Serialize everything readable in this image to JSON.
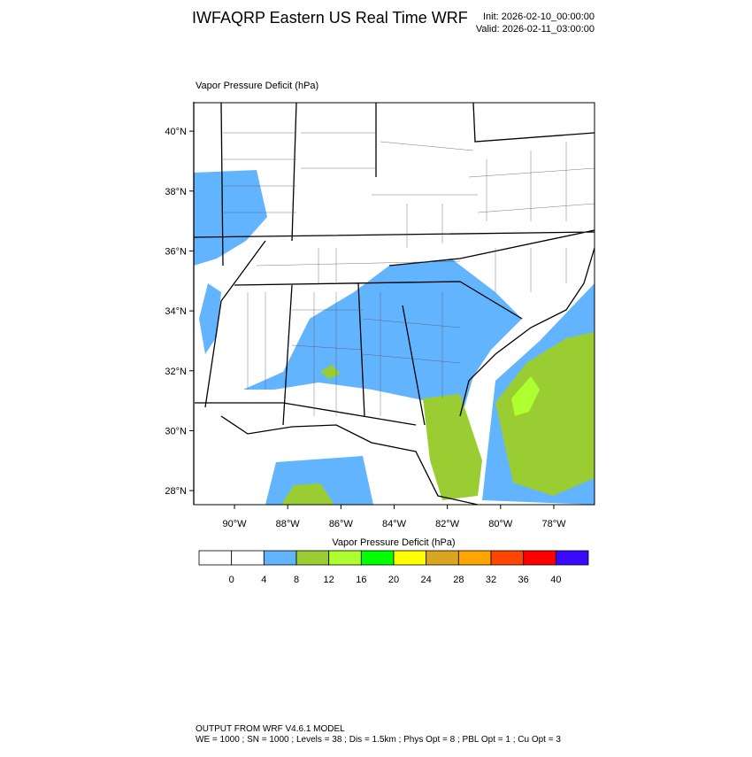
{
  "header": {
    "title": "IWFAQRP Eastern US Real Time WRF",
    "init": "Init: 2026-02-10_00:00:00",
    "valid": "Valid: 2026-02-11_03:00:00"
  },
  "map": {
    "label": "Vapor Pressure Deficit   (hPa)",
    "xlim": [
      -91.53,
      -76.47
    ],
    "ylim": [
      27.53,
      40.95
    ],
    "xticks": [
      {
        "value": -90,
        "label": "90°W"
      },
      {
        "value": -88,
        "label": "88°W"
      },
      {
        "value": -86,
        "label": "86°W"
      },
      {
        "value": -84,
        "label": "84°W"
      },
      {
        "value": -82,
        "label": "82°W"
      },
      {
        "value": -80,
        "label": "80°W"
      },
      {
        "value": -78,
        "label": "78°W"
      }
    ],
    "yticks": [
      {
        "value": 28,
        "label": "28°N"
      },
      {
        "value": 30,
        "label": "30°N"
      },
      {
        "value": 32,
        "label": "32°N"
      },
      {
        "value": 34,
        "label": "34°N"
      },
      {
        "value": 36,
        "label": "36°N"
      },
      {
        "value": 38,
        "label": "38°N"
      },
      {
        "value": 40,
        "label": "40°N"
      }
    ]
  },
  "colorbar": {
    "title": "Vapor Pressure Deficit  (hPa)",
    "levels": [
      0,
      4,
      8,
      12,
      16,
      20,
      24,
      28,
      32,
      36,
      40
    ],
    "colors": [
      "#ffffff",
      "#ffffff",
      "#63b4ff",
      "#9acd32",
      "#adff2f",
      "#00ff00",
      "#ffff00",
      "#daa520",
      "#ffa500",
      "#ff4500",
      "#ff0000",
      "#3a0aff"
    ]
  },
  "footer": {
    "line1": "OUTPUT FROM WRF V4.6.1 MODEL",
    "line2": "WE = 1000 ; SN = 1000 ; Levels = 38 ; Dis = 1.5km ; Phys Opt = 8 ; PBL Opt = 1 ; Cu Opt = 3"
  }
}
